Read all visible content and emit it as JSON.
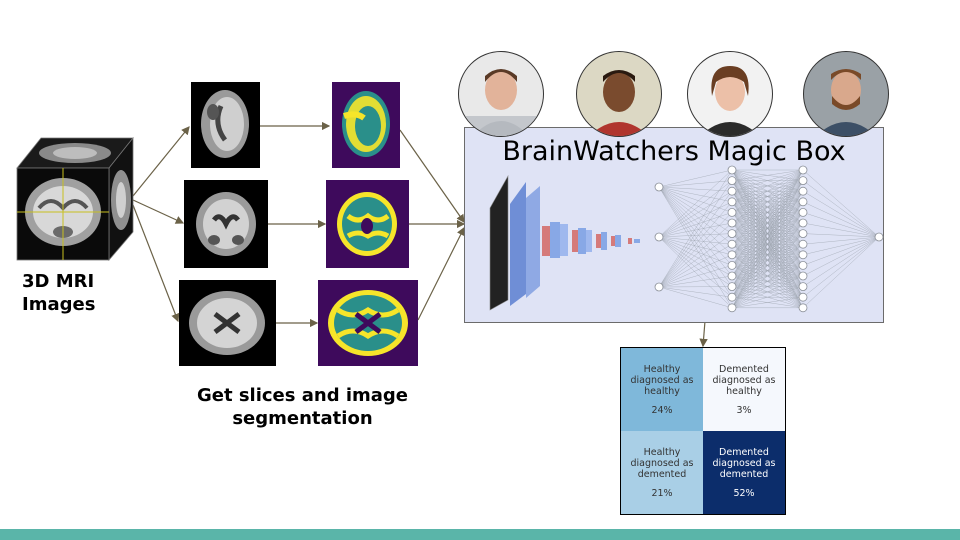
{
  "labels": {
    "mri": [
      "3D MRI",
      "Images"
    ],
    "slices": [
      "Get slices and image",
      "segmentation"
    ]
  },
  "magic_box": {
    "title": "BrainWatchers Magic Box"
  },
  "confusion_matrix": {
    "cells": [
      {
        "text": "Healthy diagnosed as healthy",
        "value": "24%",
        "color": "#7fb8da"
      },
      {
        "text": "Demented diagnosed as healthy",
        "value": "3%",
        "color": "#f5f8fd"
      },
      {
        "text": "Healthy diagnosed as demented",
        "value": "21%",
        "color": "#a9cfe6"
      },
      {
        "text": "Demented diagnosed as demented",
        "value": "52%",
        "color": "#0c2d6b"
      }
    ]
  },
  "colors": {
    "accent_bar": "#5ab5a9",
    "box_fill": "#dfe3f5",
    "segment_purple": "#3e0a5c",
    "segment_teal": "#2a8f8a",
    "segment_yellow": "#f6e52a"
  }
}
